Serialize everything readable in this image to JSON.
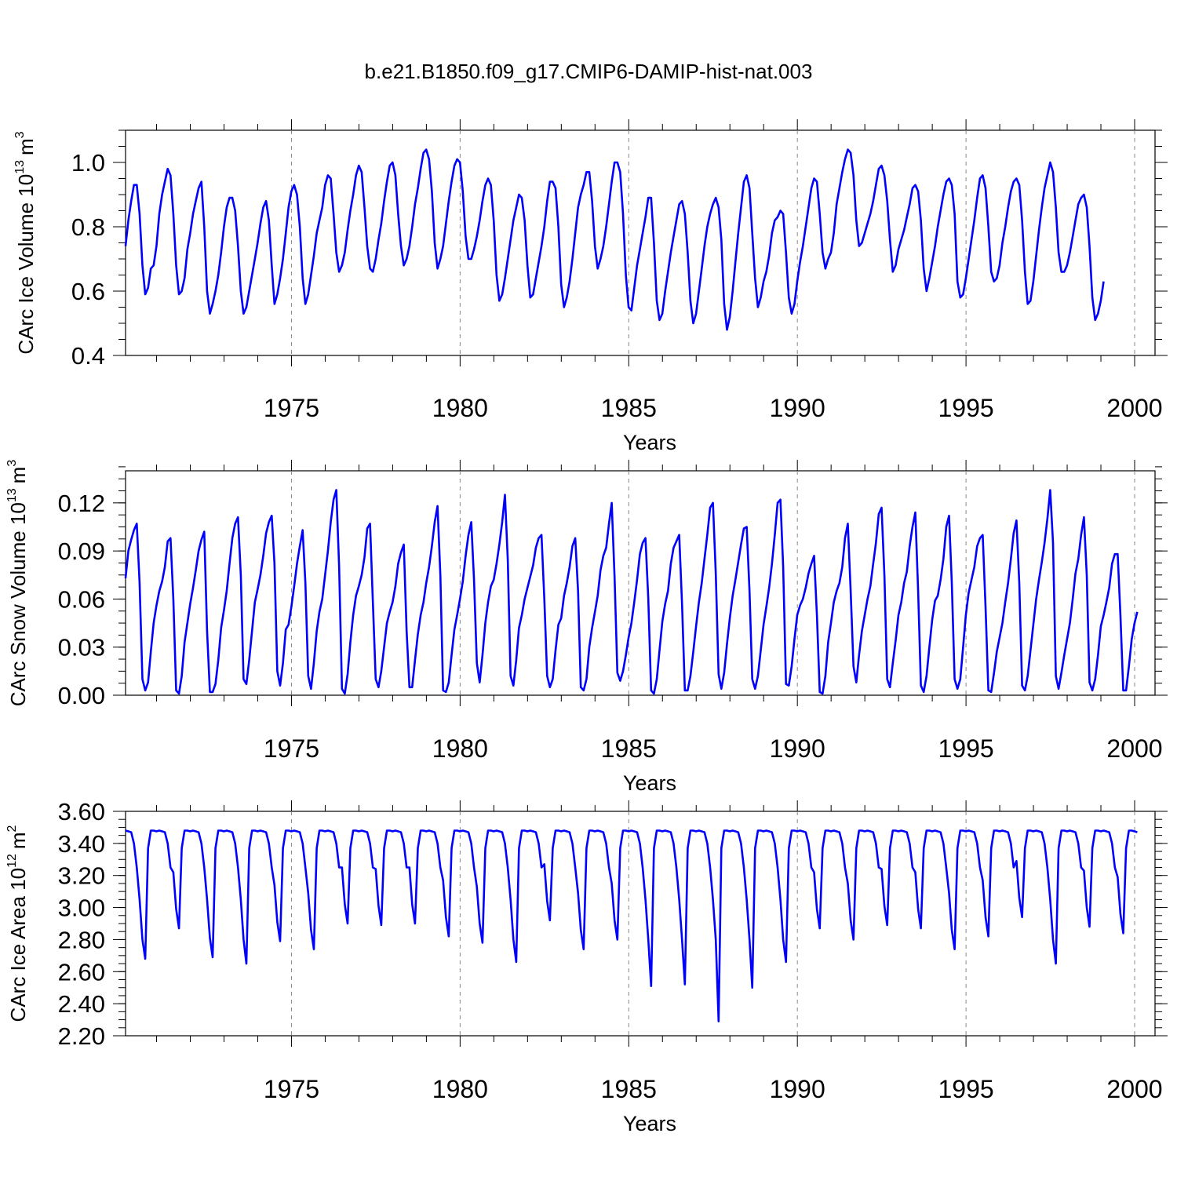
{
  "figure": {
    "title": "b.e21.B1850.f09_g17.CMIP6-DAMIP-hist-nat.003",
    "line_color": "#0000ff",
    "grid_color": "#888888"
  },
  "chart_data": [
    {
      "type": "line",
      "title": "b.e21.B1850.f09_g17.CMIP6-DAMIP-hist-nat.003",
      "xlabel": "Years",
      "ylabel": "CArc Ice Volume 10^13 m^3",
      "ylabel_main": "CArc Ice Volume 10",
      "ylabel_exp": "13",
      "ylabel_unit": "m",
      "ylabel_unit_exp": "3",
      "xlim": [
        1970.08,
        2000.0
      ],
      "ylim": [
        0.4,
        1.1
      ],
      "yticks": [
        0.4,
        0.6,
        0.8,
        1.0
      ],
      "ytick_labels": [
        "0.4",
        "0.6",
        "0.8",
        "1.0"
      ],
      "yminor_step": 0.05,
      "xticks": [
        1975,
        1980,
        1985,
        1990,
        1995,
        2000
      ],
      "xtick_labels": [
        "1975",
        "1980",
        "1985",
        "1990",
        "1995",
        "2000"
      ],
      "grid": "vertical dashed at major x ticks",
      "series": [
        {
          "name": "CArc Ice Volume",
          "start": 1970.08,
          "step": 0.0833333,
          "values": [
            0.74,
            0.82,
            0.88,
            0.93,
            0.93,
            0.84,
            0.68,
            0.59,
            0.61,
            0.67,
            0.68,
            0.74,
            0.84,
            0.9,
            0.94,
            0.98,
            0.96,
            0.84,
            0.68,
            0.59,
            0.6,
            0.64,
            0.73,
            0.78,
            0.84,
            0.88,
            0.92,
            0.94,
            0.8,
            0.6,
            0.53,
            0.56,
            0.6,
            0.65,
            0.72,
            0.8,
            0.86,
            0.89,
            0.89,
            0.85,
            0.74,
            0.6,
            0.53,
            0.55,
            0.6,
            0.65,
            0.7,
            0.75,
            0.81,
            0.86,
            0.88,
            0.82,
            0.68,
            0.56,
            0.59,
            0.64,
            0.7,
            0.78,
            0.86,
            0.91,
            0.93,
            0.9,
            0.8,
            0.64,
            0.56,
            0.59,
            0.65,
            0.71,
            0.78,
            0.82,
            0.86,
            0.93,
            0.96,
            0.95,
            0.84,
            0.72,
            0.66,
            0.68,
            0.72,
            0.79,
            0.85,
            0.9,
            0.96,
            0.99,
            0.97,
            0.86,
            0.74,
            0.67,
            0.66,
            0.7,
            0.76,
            0.81,
            0.88,
            0.94,
            0.99,
            1.0,
            0.96,
            0.84,
            0.74,
            0.68,
            0.7,
            0.74,
            0.8,
            0.87,
            0.92,
            0.98,
            1.03,
            1.04,
            1.01,
            0.91,
            0.75,
            0.67,
            0.7,
            0.74,
            0.81,
            0.88,
            0.94,
            0.99,
            1.01,
            1.0,
            0.91,
            0.77,
            0.7,
            0.7,
            0.73,
            0.77,
            0.82,
            0.88,
            0.93,
            0.95,
            0.93,
            0.82,
            0.65,
            0.57,
            0.59,
            0.64,
            0.7,
            0.76,
            0.82,
            0.86,
            0.9,
            0.89,
            0.82,
            0.68,
            0.58,
            0.59,
            0.64,
            0.69,
            0.74,
            0.8,
            0.88,
            0.94,
            0.94,
            0.92,
            0.8,
            0.62,
            0.55,
            0.58,
            0.63,
            0.7,
            0.78,
            0.86,
            0.9,
            0.93,
            0.97,
            0.97,
            0.88,
            0.74,
            0.67,
            0.7,
            0.74,
            0.8,
            0.87,
            0.94,
            1.0,
            1.0,
            0.97,
            0.84,
            0.65,
            0.55,
            0.54,
            0.61,
            0.68,
            0.73,
            0.78,
            0.83,
            0.89,
            0.89,
            0.75,
            0.57,
            0.51,
            0.53,
            0.6,
            0.66,
            0.72,
            0.77,
            0.82,
            0.87,
            0.88,
            0.84,
            0.72,
            0.57,
            0.5,
            0.53,
            0.6,
            0.67,
            0.74,
            0.8,
            0.84,
            0.87,
            0.89,
            0.86,
            0.76,
            0.56,
            0.48,
            0.52,
            0.6,
            0.69,
            0.78,
            0.86,
            0.94,
            0.96,
            0.92,
            0.78,
            0.64,
            0.55,
            0.58,
            0.63,
            0.66,
            0.71,
            0.78,
            0.82,
            0.83,
            0.85,
            0.84,
            0.72,
            0.58,
            0.53,
            0.56,
            0.63,
            0.69,
            0.74,
            0.8,
            0.86,
            0.92,
            0.95,
            0.94,
            0.84,
            0.72,
            0.67,
            0.7,
            0.72,
            0.78,
            0.87,
            0.92,
            0.97,
            1.01,
            1.04,
            1.03,
            0.96,
            0.82,
            0.74,
            0.75,
            0.78,
            0.81,
            0.84,
            0.88,
            0.93,
            0.98,
            0.99,
            0.96,
            0.88,
            0.76,
            0.66,
            0.68,
            0.73,
            0.76,
            0.79,
            0.83,
            0.87,
            0.92,
            0.93,
            0.91,
            0.82,
            0.67,
            0.6,
            0.64,
            0.69,
            0.74,
            0.8,
            0.85,
            0.9,
            0.94,
            0.95,
            0.93,
            0.84,
            0.63,
            0.58,
            0.59,
            0.64,
            0.7,
            0.76,
            0.82,
            0.89,
            0.95,
            0.96,
            0.92,
            0.8,
            0.66,
            0.63,
            0.64,
            0.68,
            0.75,
            0.8,
            0.86,
            0.91,
            0.94,
            0.95,
            0.93,
            0.82,
            0.66,
            0.56,
            0.57,
            0.63,
            0.71,
            0.79,
            0.86,
            0.92,
            0.96,
            1.0,
            0.97,
            0.86,
            0.72,
            0.66,
            0.66,
            0.68,
            0.72,
            0.77,
            0.82,
            0.87,
            0.89,
            0.9,
            0.86,
            0.74,
            0.58,
            0.51,
            0.53,
            0.57,
            0.63
          ]
        }
      ]
    },
    {
      "type": "line",
      "xlabel": "Years",
      "ylabel": "CArc Snow Volume 10^13 m^3",
      "ylabel_main": "CArc Snow Volume 10",
      "ylabel_exp": "13",
      "ylabel_unit": "m",
      "ylabel_unit_exp": "3",
      "xlim": [
        1970.08,
        2000.0
      ],
      "ylim": [
        0.0,
        0.14
      ],
      "yticks": [
        0.0,
        0.03,
        0.06,
        0.09,
        0.12
      ],
      "ytick_labels": [
        "0.00",
        "0.03",
        "0.06",
        "0.09",
        "0.12"
      ],
      "yminor_step": 0.0075,
      "xticks": [
        1975,
        1980,
        1985,
        1990,
        1995,
        2000
      ],
      "xtick_labels": [
        "1975",
        "1980",
        "1985",
        "1990",
        "1995",
        "2000"
      ],
      "grid": "vertical dashed at major x ticks",
      "series": [
        {
          "name": "CArc Snow Volume",
          "start": 1970.08,
          "step": 0.0833333,
          "values": [
            0.073,
            0.09,
            0.097,
            0.103,
            0.107,
            0.07,
            0.01,
            0.003,
            0.008,
            0.027,
            0.045,
            0.056,
            0.065,
            0.071,
            0.08,
            0.096,
            0.098,
            0.06,
            0.003,
            0.001,
            0.012,
            0.033,
            0.045,
            0.057,
            0.067,
            0.078,
            0.09,
            0.097,
            0.102,
            0.04,
            0.002,
            0.002,
            0.007,
            0.022,
            0.042,
            0.053,
            0.065,
            0.082,
            0.098,
            0.107,
            0.111,
            0.075,
            0.01,
            0.007,
            0.022,
            0.04,
            0.058,
            0.066,
            0.075,
            0.087,
            0.101,
            0.108,
            0.112,
            0.082,
            0.015,
            0.006,
            0.02,
            0.041,
            0.044,
            0.055,
            0.068,
            0.082,
            0.093,
            0.103,
            0.07,
            0.012,
            0.004,
            0.02,
            0.04,
            0.052,
            0.06,
            0.075,
            0.09,
            0.108,
            0.122,
            0.128,
            0.08,
            0.004,
            0.001,
            0.013,
            0.033,
            0.05,
            0.062,
            0.068,
            0.075,
            0.086,
            0.104,
            0.107,
            0.058,
            0.01,
            0.005,
            0.015,
            0.03,
            0.045,
            0.052,
            0.058,
            0.068,
            0.082,
            0.089,
            0.094,
            0.04,
            0.005,
            0.005,
            0.022,
            0.038,
            0.05,
            0.058,
            0.07,
            0.08,
            0.093,
            0.108,
            0.118,
            0.075,
            0.003,
            0.002,
            0.008,
            0.025,
            0.041,
            0.05,
            0.06,
            0.071,
            0.087,
            0.1,
            0.108,
            0.072,
            0.02,
            0.008,
            0.025,
            0.045,
            0.058,
            0.068,
            0.072,
            0.082,
            0.094,
            0.108,
            0.125,
            0.085,
            0.012,
            0.006,
            0.022,
            0.042,
            0.05,
            0.06,
            0.067,
            0.074,
            0.081,
            0.092,
            0.098,
            0.1,
            0.06,
            0.012,
            0.005,
            0.01,
            0.028,
            0.044,
            0.048,
            0.062,
            0.07,
            0.08,
            0.093,
            0.098,
            0.065,
            0.005,
            0.003,
            0.01,
            0.03,
            0.042,
            0.052,
            0.062,
            0.078,
            0.087,
            0.092,
            0.107,
            0.12,
            0.074,
            0.014,
            0.009,
            0.015,
            0.025,
            0.036,
            0.045,
            0.058,
            0.072,
            0.088,
            0.095,
            0.098,
            0.06,
            0.003,
            0.001,
            0.01,
            0.028,
            0.046,
            0.057,
            0.065,
            0.082,
            0.092,
            0.096,
            0.1,
            0.057,
            0.003,
            0.003,
            0.012,
            0.027,
            0.043,
            0.058,
            0.07,
            0.085,
            0.1,
            0.117,
            0.12,
            0.076,
            0.013,
            0.004,
            0.014,
            0.032,
            0.048,
            0.062,
            0.072,
            0.083,
            0.094,
            0.104,
            0.105,
            0.065,
            0.01,
            0.004,
            0.012,
            0.028,
            0.044,
            0.055,
            0.067,
            0.082,
            0.1,
            0.12,
            0.122,
            0.08,
            0.007,
            0.006,
            0.018,
            0.035,
            0.05,
            0.056,
            0.06,
            0.067,
            0.076,
            0.082,
            0.087,
            0.05,
            0.002,
            0.001,
            0.012,
            0.033,
            0.045,
            0.058,
            0.065,
            0.07,
            0.08,
            0.098,
            0.107,
            0.065,
            0.018,
            0.008,
            0.025,
            0.04,
            0.05,
            0.06,
            0.068,
            0.082,
            0.095,
            0.113,
            0.117,
            0.075,
            0.01,
            0.005,
            0.02,
            0.034,
            0.05,
            0.058,
            0.07,
            0.077,
            0.093,
            0.105,
            0.114,
            0.065,
            0.006,
            0.002,
            0.012,
            0.03,
            0.047,
            0.059,
            0.062,
            0.072,
            0.085,
            0.105,
            0.112,
            0.07,
            0.01,
            0.004,
            0.01,
            0.03,
            0.05,
            0.064,
            0.072,
            0.08,
            0.093,
            0.098,
            0.1,
            0.055,
            0.003,
            0.002,
            0.014,
            0.027,
            0.036,
            0.045,
            0.058,
            0.07,
            0.085,
            0.101,
            0.109,
            0.07,
            0.006,
            0.003,
            0.012,
            0.028,
            0.044,
            0.06,
            0.072,
            0.083,
            0.095,
            0.11,
            0.128,
            0.095,
            0.012,
            0.004,
            0.014,
            0.025,
            0.035,
            0.045,
            0.06,
            0.076,
            0.085,
            0.1,
            0.111,
            0.075,
            0.008,
            0.003,
            0.01,
            0.025,
            0.043,
            0.05,
            0.058,
            0.067,
            0.082,
            0.088,
            0.088,
            0.05,
            0.003,
            0.003,
            0.018,
            0.035,
            0.045,
            0.052
          ]
        }
      ]
    },
    {
      "type": "line",
      "xlabel": "Years",
      "ylabel": "CArc Ice Area 10^12 m^2",
      "ylabel_main": "CArc Ice Area 10",
      "ylabel_exp": "12",
      "ylabel_unit": "m",
      "ylabel_unit_exp": "2",
      "xlim": [
        1970.08,
        2000.0
      ],
      "ylim": [
        2.2,
        3.6
      ],
      "yticks": [
        2.2,
        2.4,
        2.6,
        2.8,
        3.0,
        3.2,
        3.4,
        3.6
      ],
      "ytick_labels": [
        "2.20",
        "2.40",
        "2.60",
        "2.80",
        "3.00",
        "3.20",
        "3.40",
        "3.60"
      ],
      "yminor_step": 0.05,
      "xticks": [
        1975,
        1980,
        1985,
        1990,
        1995,
        2000
      ],
      "xtick_labels": [
        "1975",
        "1980",
        "1985",
        "1990",
        "1995",
        "2000"
      ],
      "grid": "vertical dashed at major x ticks",
      "minima": [
        2.68,
        2.87,
        2.69,
        2.65,
        2.79,
        2.74,
        2.9,
        2.89,
        2.9,
        2.82,
        2.78,
        2.66,
        2.92,
        2.74,
        2.8,
        2.51,
        2.52,
        2.29,
        2.5,
        2.66,
        2.87,
        2.8,
        2.89,
        2.87,
        2.74,
        2.82,
        2.94,
        2.65,
        2.88,
        2.84
      ],
      "series": [
        {
          "name": "CArc Ice Area",
          "start": 1970.08,
          "step": 0.0833333,
          "values": []
        }
      ]
    }
  ],
  "panels_layout_note": "three stacked line panels sharing the x axis range"
}
